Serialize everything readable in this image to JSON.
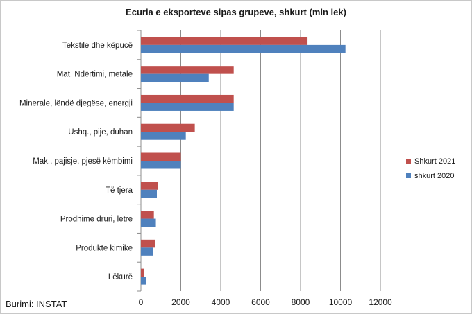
{
  "chart_data": {
    "type": "bar",
    "orientation": "horizontal",
    "title": "Ecuria e eksporteve sipas grupeve, shkurt (mln lek)",
    "categories": [
      "Tekstile dhe këpucë",
      "Mat. Ndërtimi, metale",
      "Minerale, lëndë djegëse, energji",
      "Ushq., pije, duhan",
      "Mak., pajisje, pjesë këmbimi",
      "Të tjera",
      "Prodhime druri, letre",
      "Produkte kimike",
      "Lëkurë"
    ],
    "series": [
      {
        "name": "Shkurt 2021",
        "color": "#c0504d",
        "values": [
          8350,
          4650,
          4650,
          2700,
          2000,
          850,
          650,
          700,
          150
        ]
      },
      {
        "name": "shkurt 2020",
        "color": "#4f81bd",
        "values": [
          10250,
          3400,
          4650,
          2250,
          2000,
          800,
          750,
          600,
          250
        ]
      }
    ],
    "xlim": [
      0,
      12000
    ],
    "xticks": [
      "0",
      "2000",
      "4000",
      "6000",
      "8000",
      "10000",
      "12000"
    ],
    "grid": true,
    "legend_position": "right"
  },
  "source": "Burimi: INSTAT"
}
